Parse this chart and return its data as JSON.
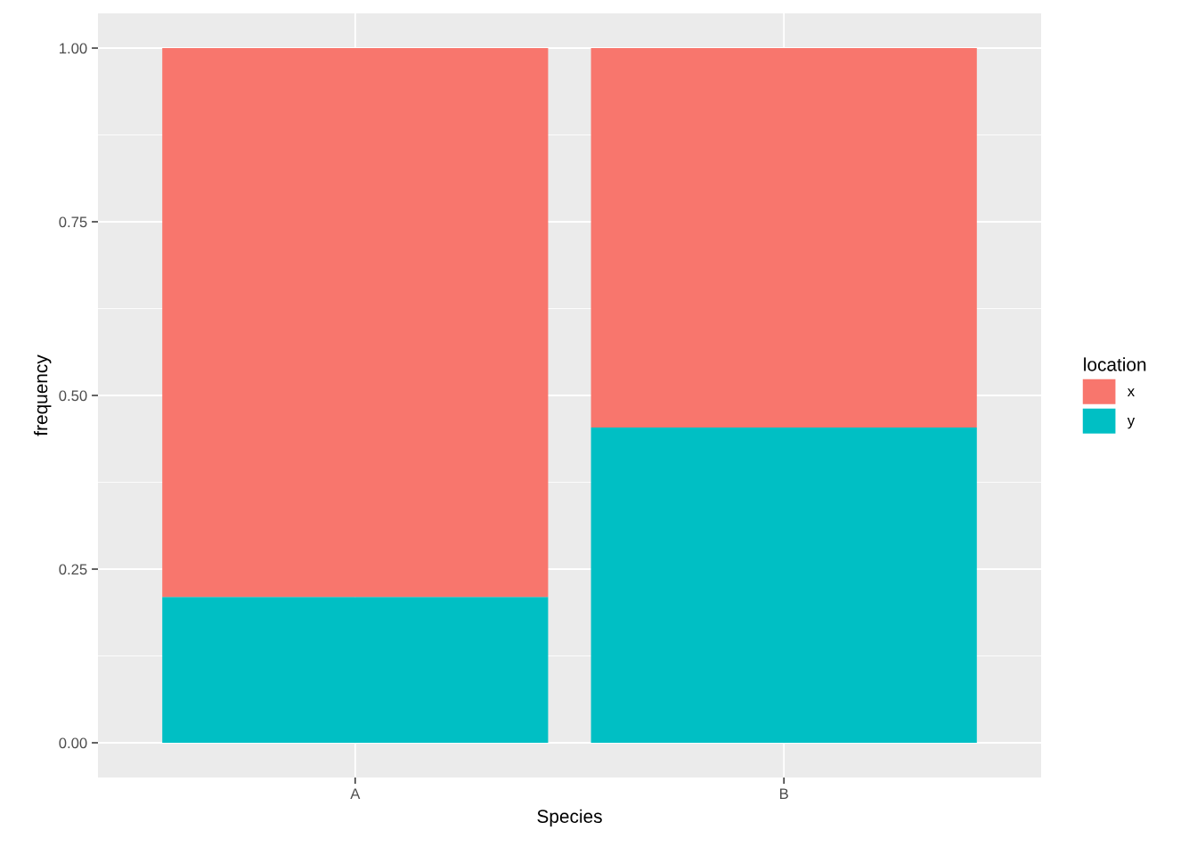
{
  "chart_data": {
    "type": "bar",
    "xlabel": "Species",
    "ylabel": "frequency",
    "legend_title": "location",
    "categories": [
      "A",
      "B"
    ],
    "series": [
      {
        "name": "y",
        "color": "#00bfc4",
        "values": [
          0.21,
          0.454
        ]
      },
      {
        "name": "x",
        "color": "#f8766d",
        "values": [
          0.79,
          0.546
        ]
      }
    ],
    "stacked": true,
    "ylim": [
      -0.05,
      1.05
    ],
    "yticks": [
      {
        "value": 0,
        "label": "0.00"
      },
      {
        "value": 0.25,
        "label": "0.25"
      },
      {
        "value": 0.5,
        "label": "0.50"
      },
      {
        "value": 0.75,
        "label": "0.75"
      },
      {
        "value": 1,
        "label": "1.00"
      }
    ],
    "grid": true,
    "legend": "right"
  }
}
